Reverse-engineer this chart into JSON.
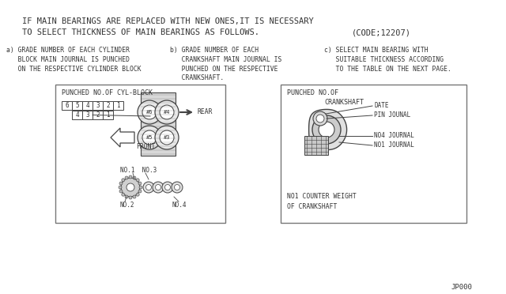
{
  "bg_color": "#ffffff",
  "line_color": "#444444",
  "title_line1": "IF MAIN BEARINGS ARE REPLACED WITH NEW ONES,IT IS NECESSARY",
  "title_line2": "TO SELECT THICKNESS OF MAIN BEARINGS AS FOLLOWS.",
  "title_code": "(CODE;12207)",
  "sub_a": "a) GRADE NUMBER OF EACH CYLINDER\n   BLOCK MAIN JOURNAL IS PUNCHED\n   ON THE RESPECTIVE CYLINDER BLOCK",
  "sub_b": "b) GRADE NUMBER OF EACH\n   CRANKSHAFT MAIN JOURNAL IS\n   PUNCHED ON THE RESPECTIVE\n   CRANKSHAFT.",
  "sub_c": "c) SELECT MAIN BEARING WITH\n   SUITABLE THICKNESS ACCORDING\n   TO THE TABLE ON THE NEXT PAGE.",
  "box1_title": "PUNCHED NO.OF CYL-BLOCK",
  "box2_title1": "PUNCHED NO.OF",
  "box2_title2": "CRANKSHAFT",
  "box2_labels": [
    "DATE",
    "PIN JOUNAL",
    "NO4 JOURNAL",
    "NO1 JOURNAL"
  ],
  "box2_bottom": "NO1 COUNTER WEIGHT\nOF CRANKSHAFT",
  "footer": "JP000",
  "text_color": "#333333",
  "box_border": "#777777",
  "font_size_title": 7.5,
  "font_size_sub": 5.8,
  "font_size_box": 6.0,
  "nums_row1": [
    "6",
    "5",
    "4",
    "3",
    "2",
    "1"
  ],
  "nums_row2": [
    "4",
    "3",
    "2",
    "1"
  ]
}
